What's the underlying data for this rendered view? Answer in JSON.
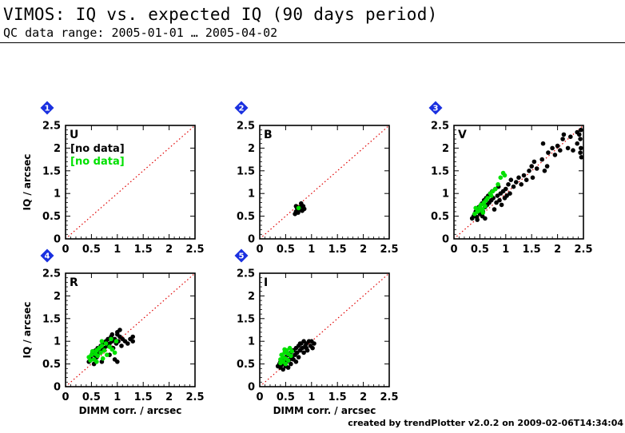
{
  "header": {
    "title": "VIMOS: IQ vs. expected IQ (90 days period)",
    "subtitle": "QC data range: 2005-01-01 … 2005-04-02"
  },
  "footer": "created by trendPlotter v2.0.2 on 2009-02-06T14:34:04",
  "colors": {
    "primary": "#000000",
    "secondary": "#00e000",
    "reference_line": "#e00000",
    "badge": "#1a30e0"
  },
  "chart_data": [
    {
      "type": "scatter",
      "badge": "1",
      "band": "U",
      "xlabel": "",
      "ylabel": "IQ / arcsec",
      "xlim": [
        0,
        2.5
      ],
      "ylim": [
        0,
        2.5
      ],
      "xticks": [
        "0",
        "0.5",
        "1",
        "1.5",
        "2",
        "2.5"
      ],
      "yticks": [
        "0",
        "0.5",
        "1",
        "1.5",
        "2",
        "2.5"
      ],
      "no_data_labels": [
        "[no data]",
        "[no data]"
      ],
      "reference_line": "y = x",
      "series": [
        {
          "color": "#000000",
          "points": []
        },
        {
          "color": "#00e000",
          "points": []
        }
      ]
    },
    {
      "type": "scatter",
      "badge": "2",
      "band": "B",
      "xlabel": "",
      "ylabel": "",
      "xlim": [
        0,
        2.5
      ],
      "ylim": [
        0,
        2.5
      ],
      "xticks": [
        "0",
        "0.5",
        "1",
        "1.5",
        "2",
        "2.5"
      ],
      "yticks": [
        "0",
        "0.5",
        "1",
        "1.5",
        "2",
        "2.5"
      ],
      "no_data_labels": [],
      "reference_line": "y = x",
      "series": [
        {
          "color": "#000000",
          "points": [
            [
              0.68,
              0.55
            ],
            [
              0.7,
              0.6
            ],
            [
              0.72,
              0.62
            ],
            [
              0.74,
              0.58
            ],
            [
              0.7,
              0.72
            ],
            [
              0.78,
              0.7
            ],
            [
              0.82,
              0.62
            ],
            [
              0.84,
              0.72
            ],
            [
              0.8,
              0.78
            ],
            [
              0.76,
              0.65
            ],
            [
              0.72,
              0.68
            ],
            [
              0.86,
              0.66
            ]
          ]
        },
        {
          "color": "#00e000",
          "points": [
            [
              0.75,
              0.68
            ]
          ]
        }
      ]
    },
    {
      "type": "scatter",
      "badge": "3",
      "band": "V",
      "xlabel": "",
      "ylabel": "",
      "xlim": [
        0,
        2.5
      ],
      "ylim": [
        0,
        2.5
      ],
      "xticks": [
        "0",
        "0.5",
        "1",
        "1.5",
        "2",
        "2.5"
      ],
      "yticks": [
        "0",
        "0.5",
        "1",
        "1.5",
        "2",
        "2.5"
      ],
      "no_data_labels": [],
      "reference_line": "y = x",
      "series": [
        {
          "color": "#000000",
          "points": [
            [
              0.35,
              0.45
            ],
            [
              0.38,
              0.5
            ],
            [
              0.4,
              0.55
            ],
            [
              0.42,
              0.6
            ],
            [
              0.44,
              0.48
            ],
            [
              0.46,
              0.62
            ],
            [
              0.48,
              0.7
            ],
            [
              0.5,
              0.55
            ],
            [
              0.52,
              0.65
            ],
            [
              0.54,
              0.78
            ],
            [
              0.56,
              0.6
            ],
            [
              0.58,
              0.85
            ],
            [
              0.6,
              0.7
            ],
            [
              0.62,
              0.9
            ],
            [
              0.64,
              0.75
            ],
            [
              0.66,
              0.95
            ],
            [
              0.68,
              0.8
            ],
            [
              0.7,
              1.0
            ],
            [
              0.72,
              0.85
            ],
            [
              0.74,
              1.05
            ],
            [
              0.76,
              0.9
            ],
            [
              0.78,
              0.65
            ],
            [
              0.8,
              1.1
            ],
            [
              0.82,
              0.8
            ],
            [
              0.84,
              0.95
            ],
            [
              0.86,
              1.15
            ],
            [
              0.88,
              0.85
            ],
            [
              0.9,
              1.0
            ],
            [
              0.92,
              0.75
            ],
            [
              0.95,
              1.05
            ],
            [
              0.98,
              0.9
            ],
            [
              1.0,
              1.1
            ],
            [
              1.02,
              0.95
            ],
            [
              1.05,
              1.2
            ],
            [
              1.08,
              1.0
            ],
            [
              1.1,
              1.3
            ],
            [
              1.15,
              1.15
            ],
            [
              1.2,
              1.25
            ],
            [
              1.25,
              1.35
            ],
            [
              1.3,
              1.2
            ],
            [
              1.35,
              1.4
            ],
            [
              1.45,
              1.5
            ],
            [
              1.5,
              1.6
            ],
            [
              1.52,
              1.35
            ],
            [
              1.55,
              1.7
            ],
            [
              1.6,
              1.55
            ],
            [
              1.7,
              1.75
            ],
            [
              1.75,
              1.5
            ],
            [
              1.8,
              1.6
            ],
            [
              1.82,
              1.9
            ],
            [
              1.9,
              2.0
            ],
            [
              1.95,
              1.85
            ],
            [
              2.0,
              2.05
            ],
            [
              2.05,
              1.95
            ],
            [
              2.1,
              2.2
            ],
            [
              2.12,
              2.3
            ],
            [
              2.2,
              2.0
            ],
            [
              2.25,
              2.25
            ],
            [
              2.3,
              1.95
            ],
            [
              2.38,
              2.1
            ],
            [
              2.42,
              2.3
            ],
            [
              2.44,
              2.2
            ],
            [
              2.45,
              2.4
            ],
            [
              2.45,
              2.0
            ],
            [
              2.46,
              1.8
            ],
            [
              2.44,
              1.9
            ],
            [
              2.38,
              2.35
            ],
            [
              1.72,
              2.1
            ],
            [
              1.4,
              1.3
            ],
            [
              0.55,
              0.5
            ],
            [
              0.6,
              0.45
            ],
            [
              0.45,
              0.42
            ]
          ]
        },
        {
          "color": "#00e000",
          "points": [
            [
              0.4,
              0.55
            ],
            [
              0.45,
              0.6
            ],
            [
              0.5,
              0.7
            ],
            [
              0.52,
              0.75
            ],
            [
              0.55,
              0.65
            ],
            [
              0.58,
              0.8
            ],
            [
              0.6,
              0.72
            ],
            [
              0.62,
              0.85
            ],
            [
              0.48,
              0.62
            ],
            [
              0.65,
              0.9
            ],
            [
              0.7,
              1.0
            ],
            [
              0.72,
              0.95
            ],
            [
              0.75,
              1.05
            ],
            [
              0.8,
              1.1
            ],
            [
              0.85,
              1.2
            ],
            [
              0.9,
              1.35
            ],
            [
              0.95,
              1.45
            ],
            [
              0.98,
              1.4
            ],
            [
              0.42,
              0.68
            ],
            [
              0.56,
              0.58
            ]
          ]
        }
      ]
    },
    {
      "type": "scatter",
      "badge": "4",
      "band": "R",
      "xlabel": "DIMM corr. / arcsec",
      "ylabel": "IQ / arcsec",
      "xlim": [
        0,
        2.5
      ],
      "ylim": [
        0,
        2.5
      ],
      "xticks": [
        "0",
        "0.5",
        "1",
        "1.5",
        "2",
        "2.5"
      ],
      "yticks": [
        "0",
        "0.5",
        "1",
        "1.5",
        "2",
        "2.5"
      ],
      "no_data_labels": [],
      "reference_line": "y = x",
      "series": [
        {
          "color": "#000000",
          "points": [
            [
              0.45,
              0.55
            ],
            [
              0.48,
              0.65
            ],
            [
              0.5,
              0.6
            ],
            [
              0.52,
              0.75
            ],
            [
              0.55,
              0.7
            ],
            [
              0.58,
              0.8
            ],
            [
              0.6,
              0.65
            ],
            [
              0.62,
              0.85
            ],
            [
              0.65,
              0.75
            ],
            [
              0.68,
              0.9
            ],
            [
              0.7,
              0.8
            ],
            [
              0.72,
              0.95
            ],
            [
              0.75,
              0.85
            ],
            [
              0.78,
              1.0
            ],
            [
              0.8,
              0.9
            ],
            [
              0.82,
              1.05
            ],
            [
              0.85,
              0.95
            ],
            [
              0.88,
              1.1
            ],
            [
              0.9,
              1.0
            ],
            [
              0.92,
              0.85
            ],
            [
              0.95,
              1.05
            ],
            [
              0.98,
              0.95
            ],
            [
              1.0,
              1.15
            ],
            [
              1.02,
              1.0
            ],
            [
              1.05,
              1.1
            ],
            [
              1.08,
              0.9
            ],
            [
              1.1,
              1.05
            ],
            [
              1.15,
              1.0
            ],
            [
              1.2,
              0.95
            ],
            [
              1.25,
              1.05
            ],
            [
              1.3,
              1.0
            ],
            [
              0.95,
              0.6
            ],
            [
              1.0,
              0.55
            ],
            [
              0.55,
              0.5
            ],
            [
              0.7,
              0.55
            ],
            [
              0.85,
              0.7
            ],
            [
              1.0,
              1.2
            ],
            [
              1.05,
              1.25
            ],
            [
              0.9,
              1.15
            ],
            [
              1.3,
              1.1
            ]
          ]
        },
        {
          "color": "#00e000",
          "points": [
            [
              0.45,
              0.65
            ],
            [
              0.5,
              0.7
            ],
            [
              0.52,
              0.78
            ],
            [
              0.55,
              0.6
            ],
            [
              0.58,
              0.72
            ],
            [
              0.6,
              0.8
            ],
            [
              0.62,
              0.68
            ],
            [
              0.65,
              0.85
            ],
            [
              0.68,
              0.75
            ],
            [
              0.7,
              0.9
            ],
            [
              0.72,
              0.62
            ],
            [
              0.75,
              0.8
            ],
            [
              0.78,
              0.95
            ],
            [
              0.8,
              0.7
            ],
            [
              0.85,
              0.88
            ],
            [
              0.9,
              0.82
            ],
            [
              0.95,
              0.75
            ],
            [
              0.7,
              1.0
            ],
            [
              0.6,
              0.55
            ],
            [
              0.48,
              0.58
            ],
            [
              0.88,
              1.05
            ],
            [
              0.98,
              1.0
            ]
          ]
        }
      ]
    },
    {
      "type": "scatter",
      "badge": "5",
      "band": "I",
      "xlabel": "DIMM corr. / arcsec",
      "ylabel": "",
      "xlim": [
        0,
        2.5
      ],
      "ylim": [
        0,
        2.5
      ],
      "xticks": [
        "0",
        "0.5",
        "1",
        "1.5",
        "2",
        "2.5"
      ],
      "yticks": [
        "0",
        "0.5",
        "1",
        "1.5",
        "2",
        "2.5"
      ],
      "no_data_labels": [],
      "reference_line": "y = x",
      "series": [
        {
          "color": "#000000",
          "points": [
            [
              0.35,
              0.45
            ],
            [
              0.38,
              0.5
            ],
            [
              0.4,
              0.55
            ],
            [
              0.42,
              0.48
            ],
            [
              0.45,
              0.6
            ],
            [
              0.48,
              0.52
            ],
            [
              0.5,
              0.65
            ],
            [
              0.52,
              0.55
            ],
            [
              0.55,
              0.7
            ],
            [
              0.58,
              0.6
            ],
            [
              0.6,
              0.75
            ],
            [
              0.62,
              0.65
            ],
            [
              0.65,
              0.8
            ],
            [
              0.68,
              0.7
            ],
            [
              0.7,
              0.85
            ],
            [
              0.72,
              0.75
            ],
            [
              0.75,
              0.9
            ],
            [
              0.78,
              0.8
            ],
            [
              0.8,
              0.95
            ],
            [
              0.82,
              0.85
            ],
            [
              0.85,
              1.0
            ],
            [
              0.88,
              0.9
            ],
            [
              0.9,
              0.95
            ],
            [
              0.92,
              0.8
            ],
            [
              0.95,
              1.0
            ],
            [
              0.98,
              0.9
            ],
            [
              1.0,
              1.0
            ],
            [
              1.05,
              0.95
            ],
            [
              0.4,
              0.42
            ],
            [
              0.5,
              0.45
            ],
            [
              0.6,
              0.5
            ],
            [
              0.7,
              0.55
            ],
            [
              0.45,
              0.38
            ],
            [
              0.55,
              0.42
            ],
            [
              0.65,
              0.6
            ],
            [
              0.75,
              0.65
            ],
            [
              0.85,
              0.75
            ],
            [
              0.9,
              0.85
            ],
            [
              0.78,
              0.95
            ],
            [
              1.02,
              0.85
            ]
          ]
        },
        {
          "color": "#00e000",
          "points": [
            [
              0.4,
              0.6
            ],
            [
              0.42,
              0.7
            ],
            [
              0.45,
              0.65
            ],
            [
              0.48,
              0.75
            ],
            [
              0.5,
              0.62
            ],
            [
              0.52,
              0.8
            ],
            [
              0.55,
              0.72
            ],
            [
              0.58,
              0.85
            ],
            [
              0.6,
              0.68
            ],
            [
              0.45,
              0.55
            ],
            [
              0.5,
              0.5
            ],
            [
              0.55,
              0.58
            ],
            [
              0.62,
              0.78
            ],
            [
              0.4,
              0.52
            ],
            [
              0.48,
              0.82
            ]
          ]
        }
      ]
    }
  ]
}
